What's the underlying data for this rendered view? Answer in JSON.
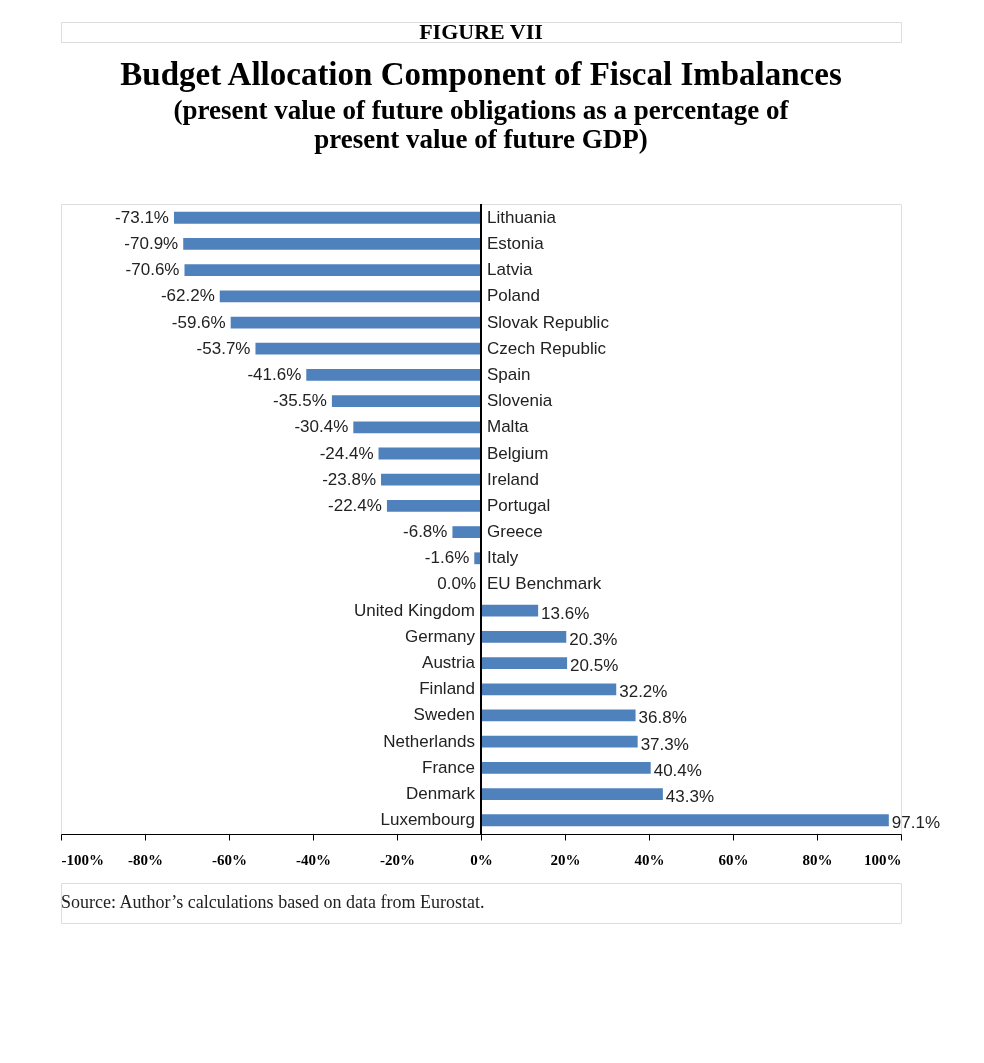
{
  "chart_data": {
    "type": "bar",
    "orientation": "horizontal",
    "title": "Budget Allocation Component of Fiscal Imbalances",
    "subtitle": "(present value of future obligations as a percentage of present value of future GDP)",
    "annotations": [
      "FIGURE VII",
      "Source: Author’s calculations based on data from Eurostat."
    ],
    "categories": [
      "Lithuania",
      "Estonia",
      "Latvia",
      "Poland",
      "Slovak Republic",
      "Czech Republic",
      "Spain",
      "Slovenia",
      "Malta",
      "Belgium",
      "Ireland",
      "Portugal",
      "Greece",
      "Italy",
      "EU Benchmark",
      "United Kingdom",
      "Germany",
      "Austria",
      "Finland",
      "Sweden",
      "Netherlands",
      "France",
      "Denmark",
      "Luxembourg"
    ],
    "values": [
      -73.1,
      -70.9,
      -70.6,
      -62.2,
      -59.6,
      -53.7,
      -41.6,
      -35.5,
      -30.4,
      -24.4,
      -23.8,
      -22.4,
      -6.8,
      -1.6,
      0.0,
      13.6,
      20.3,
      20.5,
      32.2,
      36.8,
      37.3,
      40.4,
      43.3,
      97.1
    ],
    "value_labels": [
      "-73.1%",
      "-70.9%",
      "-70.6%",
      "-62.2%",
      "-59.6%",
      "-53.7%",
      "-41.6%",
      "-35.5%",
      "-30.4%",
      "-24.4%",
      "-23.8%",
      "-22.4%",
      "-6.8%",
      "-1.6%",
      "0.0%",
      "13.6%",
      "20.3%",
      "20.5%",
      "32.2%",
      "36.8%",
      "37.3%",
      "40.4%",
      "43.3%",
      "97.1%"
    ],
    "color": "#4f81bd",
    "xlim": [
      -100,
      100
    ],
    "xticks": [
      {
        "value": -100,
        "label": "-100%"
      },
      {
        "value": -80,
        "label": "-80%"
      },
      {
        "value": -60,
        "label": "-60%"
      },
      {
        "value": -40,
        "label": "-40%"
      },
      {
        "value": -20,
        "label": "-20%"
      },
      {
        "value": 0,
        "label": "0%"
      },
      {
        "value": 20,
        "label": "20%"
      },
      {
        "value": 40,
        "label": "40%"
      },
      {
        "value": 60,
        "label": "60%"
      },
      {
        "value": 80,
        "label": "80%"
      },
      {
        "value": 100,
        "label": "100%"
      }
    ],
    "grid": false
  }
}
